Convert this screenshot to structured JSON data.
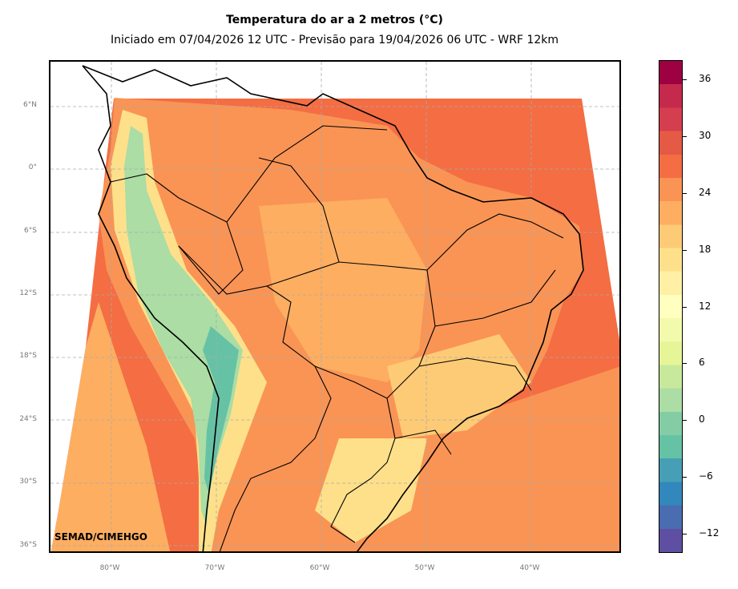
{
  "map": {
    "title": "Temperatura do ar a 2 metros (°C)",
    "subtitle": "Iniciado em 07/04/2026 12 UTC - Previsão para 19/04/2026 06 UTC - WRF 12km",
    "credit": "SEMAD/CIMEHGO",
    "latitude_labels": [
      "6°N",
      "0°",
      "6°S",
      "12°S",
      "18°S",
      "24°S",
      "30°S",
      "36°S"
    ],
    "longitude_labels": [
      "80°W",
      "70°W",
      "60°W",
      "50°W",
      "40°W"
    ],
    "colorbar": {
      "tick_labels": [
        "36",
        "30",
        "24",
        "18",
        "12",
        "6",
        "0",
        "−6",
        "−12"
      ],
      "colors": [
        "#5e4fa2",
        "#4a6cb0",
        "#3288bd",
        "#469fb5",
        "#66c2a5",
        "#84cda4",
        "#abdda4",
        "#c8e99c",
        "#e6f598",
        "#f2faac",
        "#ffffbf",
        "#fff0a5",
        "#fee08b",
        "#fdcb76",
        "#fdae61",
        "#f99455",
        "#f46d43",
        "#e55a45",
        "#d53e4f",
        "#c52a4c",
        "#9e0142"
      ],
      "range_min": -14,
      "range_max": 38
    },
    "colors": {
      "ocean_warm": "#f46d43",
      "land_warm": "#f99455",
      "land_mild": "#fdae61",
      "cool": "#fee08b",
      "andes_cold": "#abdda4",
      "andes_very_cold": "#66c2a5",
      "border": "#000000"
    }
  }
}
